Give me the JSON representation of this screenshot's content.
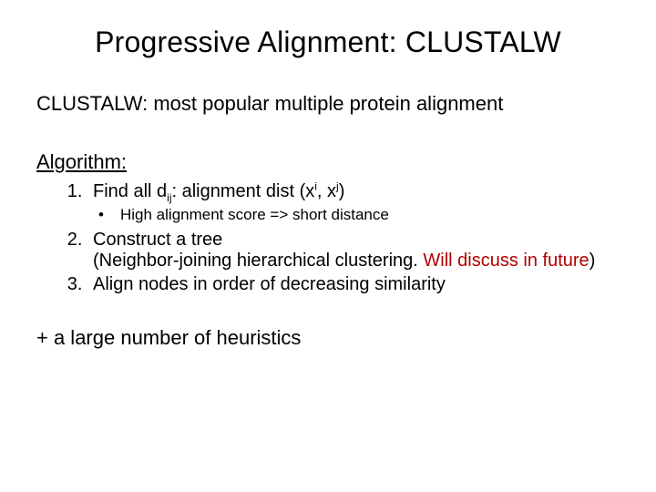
{
  "title": "Progressive Alignment: CLUSTALW",
  "subtitle": "CLUSTALW: most popular multiple protein alignment",
  "section_heading": "Algorithm:",
  "steps": {
    "step1_prefix": "Find all d",
    "step1_sub_ij": "ij",
    "step1_mid": ": alignment dist (x",
    "step1_sup_i": "i",
    "step1_comma": ", x",
    "step1_sup_j": "j",
    "step1_suffix": ")",
    "step1_bullet": "High alignment score => short distance",
    "step2_line1": "Construct a tree",
    "step2_line2_black": "(Neighbor-joining hierarchical clustering. ",
    "step2_line2_red": "Will discuss in future",
    "step2_line2_close": ")",
    "step3": "Align nodes in order of decreasing similarity"
  },
  "footer": "+ a large number of heuristics",
  "colors": {
    "background": "#ffffff",
    "text": "#000000",
    "accent": "#b30000"
  },
  "fonts": {
    "family": "Arial",
    "title_size_pt": 32,
    "body_size_pt": 22,
    "list_size_pt": 20,
    "subbullet_size_pt": 17
  }
}
